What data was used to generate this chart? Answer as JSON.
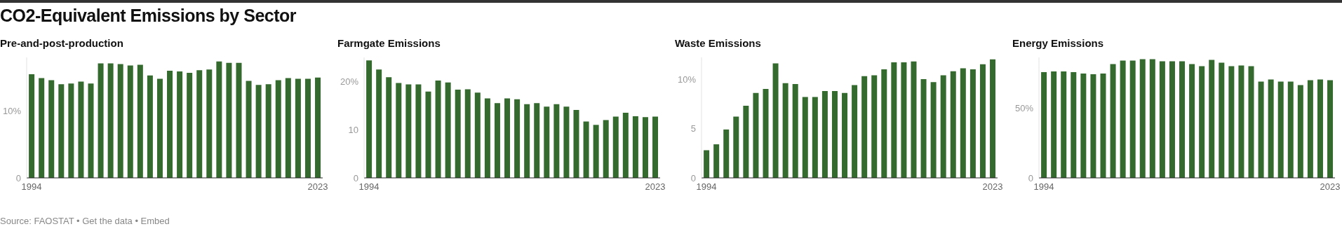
{
  "chart_data": [
    {
      "type": "bar",
      "title": "CO2-Equivalent Emissions by Sector",
      "subtitle": "Pre-and-post-production",
      "annotations": [
        "Source: FAOSTAT • Get the data • Embed"
      ],
      "categories": [
        "1994",
        null,
        null,
        null,
        null,
        null,
        null,
        null,
        null,
        null,
        null,
        null,
        null,
        null,
        null,
        null,
        null,
        null,
        null,
        null,
        null,
        null,
        null,
        null,
        null,
        null,
        null,
        null,
        null,
        "2023"
      ],
      "values": [
        15.5,
        14.9,
        14.6,
        14.0,
        14.1,
        14.4,
        14.1,
        17.1,
        17.1,
        17.0,
        16.8,
        16.9,
        15.3,
        14.8,
        16.0,
        15.9,
        15.7,
        16.1,
        16.2,
        17.4,
        17.2,
        17.2,
        14.5,
        13.9,
        14.0,
        14.6,
        14.9,
        14.8,
        14.8,
        15.0
      ],
      "color": "#356a2f",
      "ylim": [
        0,
        18
      ],
      "yticks": [
        0,
        {
          "value": 10,
          "label": "10%"
        }
      ]
    },
    {
      "type": "bar",
      "subtitle": "Farmgate Emissions",
      "categories": [
        "1994",
        null,
        null,
        null,
        null,
        null,
        null,
        null,
        null,
        null,
        null,
        null,
        null,
        null,
        null,
        null,
        null,
        null,
        null,
        null,
        null,
        null,
        null,
        null,
        null,
        null,
        null,
        null,
        null,
        "2023"
      ],
      "values": [
        24.4,
        22.5,
        20.9,
        19.7,
        19.4,
        19.4,
        17.9,
        20.2,
        19.8,
        18.3,
        18.4,
        17.7,
        16.5,
        15.5,
        16.5,
        16.3,
        15.3,
        15.5,
        14.8,
        15.3,
        14.8,
        14.1,
        11.7,
        11.0,
        12.0,
        12.7,
        13.5,
        12.8,
        12.6,
        12.7
      ],
      "color": "#356a2f",
      "ylim": [
        0,
        25
      ],
      "yticks": [
        0,
        10,
        {
          "value": 20,
          "label": "20%"
        }
      ]
    },
    {
      "type": "bar",
      "subtitle": "Waste Emissions",
      "categories": [
        "1994",
        null,
        null,
        null,
        null,
        null,
        null,
        null,
        null,
        null,
        null,
        null,
        null,
        null,
        null,
        null,
        null,
        null,
        null,
        null,
        null,
        null,
        null,
        null,
        null,
        null,
        null,
        null,
        null,
        "2023"
      ],
      "values": [
        2.8,
        3.4,
        4.9,
        6.2,
        7.3,
        8.6,
        9.0,
        11.6,
        9.6,
        9.5,
        8.2,
        8.2,
        8.8,
        8.8,
        8.6,
        9.4,
        10.3,
        10.4,
        11.0,
        11.7,
        11.7,
        11.8,
        10.0,
        9.7,
        10.4,
        10.8,
        11.1,
        11.0,
        11.5,
        12.0
      ],
      "color": "#356a2f",
      "ylim": [
        0,
        12.2
      ],
      "yticks": [
        0,
        5,
        {
          "value": 10,
          "label": "10%"
        }
      ]
    },
    {
      "type": "bar",
      "subtitle": "Energy Emissions",
      "categories": [
        "1994",
        null,
        null,
        null,
        null,
        null,
        null,
        null,
        null,
        null,
        null,
        null,
        null,
        null,
        null,
        null,
        null,
        null,
        null,
        null,
        null,
        null,
        null,
        null,
        null,
        null,
        null,
        null,
        null,
        "2023"
      ],
      "values": [
        75.5,
        76,
        76,
        75.5,
        74.5,
        74,
        74.5,
        81.3,
        83.7,
        83.7,
        84.7,
        84.7,
        83.2,
        83.2,
        83.2,
        81.3,
        79.8,
        84.2,
        82.3,
        79.8,
        80.3,
        79.8,
        68.7,
        70.2,
        68.7,
        68.7,
        66.3,
        69.7,
        70.2,
        69.7
      ],
      "color": "#356a2f",
      "ylim": [
        0,
        86
      ],
      "yticks": [
        0,
        {
          "value": 50,
          "label": "50%"
        }
      ]
    }
  ]
}
